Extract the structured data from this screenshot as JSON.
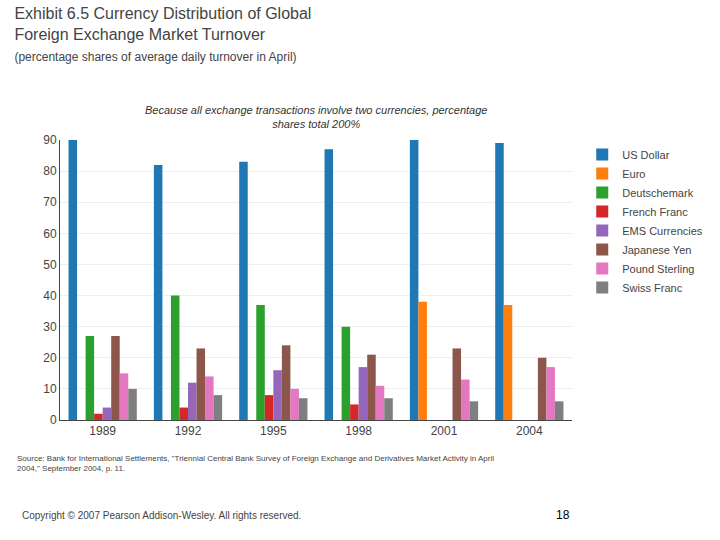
{
  "chart_data": {
    "type": "bar",
    "title": "Exhibit 6.5 Currency Distribution of Global\nForeign Exchange Market Turnover",
    "subtitle": "(percentage shares of average daily turnover in April)",
    "annotations": [
      "Because all exchange transactions involve two currencies, percentage\nshares total 200%",
      "Source: Bank for International Settlements, \"Triennial Central Bank Survey of Foreign Exchange and Derivatives Market Activity in April\n2004,\" September 2004, p. 11.",
      "Copyright © 2007 Pearson Addison-Wesley. All rights reserved.",
      "18"
    ],
    "categories": [
      "1989",
      "1992",
      "1995",
      "1998",
      "2001",
      "2004"
    ],
    "series": [
      {
        "name": "US Dollar",
        "values": [
          90,
          82,
          83,
          87,
          90,
          89
        ]
      },
      {
        "name": "Euro",
        "values": [
          0,
          0,
          0,
          0,
          38,
          37
        ]
      },
      {
        "name": "Deutschemark",
        "values": [
          27,
          40,
          37,
          30,
          0,
          0
        ]
      },
      {
        "name": "French Franc",
        "values": [
          2,
          4,
          8,
          5,
          0,
          0
        ]
      },
      {
        "name": "EMS Currencies",
        "values": [
          4,
          12,
          16,
          17,
          0,
          0
        ]
      },
      {
        "name": "Japanese Yen",
        "values": [
          27,
          23,
          24,
          21,
          23,
          20
        ]
      },
      {
        "name": "Pound Sterling",
        "values": [
          15,
          14,
          10,
          11,
          13,
          17
        ]
      },
      {
        "name": "Swiss Franc",
        "values": [
          10,
          8,
          7,
          7,
          6,
          6
        ]
      }
    ],
    "ylim": [
      0,
      90
    ],
    "yticks": [
      0,
      10,
      20,
      30,
      40,
      50,
      60,
      70,
      80,
      90
    ],
    "grid": true,
    "legend": "right"
  }
}
